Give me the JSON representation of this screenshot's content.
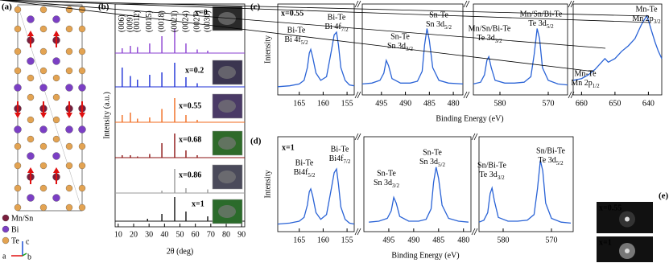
{
  "structure": {
    "panel_label": "(a)",
    "legend": [
      "Mn/Sn",
      "Bi",
      "Te"
    ],
    "axes": [
      "a",
      "b",
      "c"
    ]
  },
  "chart_data": [
    {
      "type": "stem",
      "panel_label": "(b)",
      "xlabel": "2θ (deg)",
      "ylabel": "Intensity (a.u.)",
      "xlim": [
        8,
        92
      ],
      "xticks": [
        10,
        20,
        30,
        40,
        50,
        60,
        70,
        80,
        90
      ],
      "peak_labels": [
        "(006)",
        "(009)",
        "(0012)",
        "(0015)",
        "(0018)",
        "(0021)",
        "(0024)",
        "(0027)",
        "(0030)"
      ],
      "series": [
        {
          "name": "x=0",
          "color": "#8a3fd1",
          "x": [
            12.6,
            17.9,
            22.5,
            30.4,
            38.3,
            46.6,
            53.9,
            61.2,
            68.0
          ],
          "values": [
            20,
            30,
            25,
            40,
            70,
            100,
            40,
            15,
            10
          ]
        },
        {
          "name": "x=0.2",
          "color": "#1c2fd6",
          "x": [
            12.6,
            17.9,
            22.5,
            30.4,
            38.3,
            46.6,
            53.9,
            61.2
          ],
          "values": [
            80,
            45,
            30,
            50,
            60,
            100,
            40,
            15
          ]
        },
        {
          "name": "x=0.55",
          "color": "#f06a1d",
          "x": [
            12.6,
            17.9,
            22.5,
            30.4,
            38.3,
            46.6,
            53.9,
            61.2
          ],
          "values": [
            30,
            40,
            15,
            20,
            55,
            100,
            30,
            10
          ]
        },
        {
          "name": "x=0.68",
          "color": "#8b1010",
          "x": [
            12.6,
            17.9,
            22.5,
            30.4,
            38.3,
            46.6,
            53.9,
            61.2
          ],
          "values": [
            10,
            10,
            5,
            15,
            60,
            100,
            30,
            10
          ]
        },
        {
          "name": "x=0.86",
          "color": "#9a9a9a",
          "x": [
            38.3,
            46.6,
            53.9,
            68.0
          ],
          "values": [
            10,
            100,
            20,
            15
          ]
        },
        {
          "name": "x=1",
          "color": "#111111",
          "x": [
            29.0,
            38.3,
            46.6,
            53.9,
            68.0
          ],
          "values": [
            10,
            30,
            100,
            40,
            20
          ]
        }
      ]
    },
    {
      "type": "line",
      "panel_label": "(c)",
      "title": "x=0.55",
      "xlabel": "Binding Energy (eV)",
      "ylabel": "Intensity",
      "color": "#2a63d6",
      "ylim": [
        0,
        100
      ],
      "segments": [
        {
          "xlim": [
            169.5,
            153.5
          ],
          "xticks": [
            165,
            160,
            155
          ],
          "x": [
            169.5,
            167,
            165,
            164,
            163.3,
            162.9,
            162.6,
            162.2,
            161.5,
            160.5,
            159.3,
            158.3,
            157.7,
            157.2,
            156.8,
            156.3,
            155.4,
            154.5,
            153.5
          ],
          "values": [
            9,
            10,
            12,
            16,
            30,
            46,
            50,
            42,
            24,
            16,
            20,
            48,
            66,
            69,
            55,
            30,
            16,
            11,
            10
          ]
        },
        {
          "xlim": [
            499,
            478
          ],
          "xticks": [
            495,
            490,
            485,
            480
          ],
          "x": [
            499,
            497,
            495.3,
            494.5,
            494,
            493.5,
            492.8,
            491,
            489,
            487.5,
            486.5,
            486,
            485.5,
            485,
            484.3,
            483,
            481,
            478
          ],
          "values": [
            12,
            13,
            16,
            24,
            38,
            32,
            18,
            13,
            13,
            15,
            26,
            55,
            73,
            60,
            30,
            16,
            13,
            12
          ]
        },
        {
          "xlim": [
            585.5,
            566
          ],
          "xticks": [
            580,
            570
          ],
          "x": [
            585.5,
            584,
            583.2,
            582.7,
            582.3,
            581.8,
            581,
            579,
            577,
            575,
            573.6,
            572.9,
            572.3,
            571.8,
            571.2,
            570,
            568,
            566
          ],
          "values": [
            12,
            14,
            22,
            38,
            42,
            30,
            16,
            13,
            13,
            14,
            20,
            45,
            73,
            62,
            30,
            16,
            12,
            11
          ]
        },
        {
          "xlim": [
            662.5,
            636
          ],
          "xticks": [
            660,
            650,
            640
          ],
          "x": [
            662.5,
            660,
            658,
            656,
            654,
            653,
            652,
            650,
            648,
            646,
            644,
            643,
            642,
            641,
            640.5,
            640,
            639,
            638,
            637,
            636
          ],
          "values": [
            16,
            18,
            22,
            28,
            36,
            40,
            36,
            40,
            48,
            54,
            62,
            70,
            78,
            84,
            87,
            82,
            70,
            58,
            48,
            40
          ]
        }
      ],
      "annotations": [
        {
          "text": "Bi-Te",
          "label": "Bi 4f",
          "sub": "5/2"
        },
        {
          "text": "Bi-Te",
          "label": "Bi 4f",
          "sub": "7/2"
        },
        {
          "text": "Sn-Te",
          "label": "Sn 3d",
          "sub": "3/2"
        },
        {
          "text": "Sn-Te",
          "label": "Sn 3d",
          "sub": "5/2"
        },
        {
          "text": "Mn/Sn/Bi-Te",
          "label": "Te 3d",
          "sub": "3/2"
        },
        {
          "text": "Mn/Sn/Bi-Te",
          "label": "Te 3d",
          "sub": "5/2"
        },
        {
          "text": "Mn-Te",
          "label": "Mn 2p",
          "sub": "3/2"
        },
        {
          "text": "Mn-Te",
          "label": "Mn 2p",
          "sub": "1/2"
        }
      ]
    },
    {
      "type": "line",
      "panel_label": "(d)",
      "title": "x=1",
      "xlabel": "Binding Energy (eV)",
      "ylabel": "Intensity",
      "color": "#2a63d6",
      "ylim": [
        0,
        100
      ],
      "segments": [
        {
          "xlim": [
            169.5,
            153.5
          ],
          "xticks": [
            165,
            160,
            155
          ],
          "x": [
            169.5,
            167,
            165,
            164,
            163.3,
            162.9,
            162.6,
            162.2,
            161.5,
            160.5,
            159.3,
            158.3,
            157.7,
            157.2,
            156.8,
            156.3,
            155.4,
            154.5,
            153.5
          ],
          "values": [
            8,
            9,
            11,
            15,
            28,
            42,
            45,
            38,
            20,
            13,
            18,
            45,
            62,
            66,
            50,
            26,
            13,
            9,
            8
          ]
        },
        {
          "xlim": [
            500,
            478.5
          ],
          "xticks": [
            495,
            490,
            485,
            480
          ],
          "x": [
            499,
            497,
            495.3,
            494.5,
            494,
            493.5,
            492.8,
            491,
            489,
            487.5,
            486.5,
            486,
            485.5,
            485,
            484.3,
            483,
            481,
            479
          ],
          "values": [
            10,
            11,
            14,
            22,
            36,
            30,
            16,
            11,
            11,
            13,
            24,
            52,
            68,
            56,
            28,
            14,
            11,
            10
          ]
        },
        {
          "xlim": [
            585,
            565.5
          ],
          "xticks": [
            580,
            570
          ],
          "x": [
            585,
            584,
            583.2,
            582.7,
            582.3,
            581.8,
            581,
            579,
            577,
            575,
            573.6,
            572.9,
            572.3,
            571.8,
            571.2,
            570,
            568,
            566
          ],
          "values": [
            10,
            12,
            20,
            40,
            46,
            32,
            15,
            11,
            11,
            12,
            18,
            45,
            75,
            64,
            30,
            14,
            10,
            9
          ]
        }
      ],
      "annotations": [
        {
          "text": "Bi-Te",
          "label": "Bi4f",
          "sub": "5/2"
        },
        {
          "text": "Bi-Te",
          "label": "Bi4f",
          "sub": "7/2"
        },
        {
          "text": "Sn-Te",
          "label": "Sn 3d",
          "sub": "3/2"
        },
        {
          "text": "Sn-Te",
          "label": "Sn 3d",
          "sub": "5/2"
        },
        {
          "text": "Sn/Bi-Te",
          "label": "Te 3d",
          "sub": "3/2"
        },
        {
          "text": "Sn/Bi-Te",
          "label": "Te 3d",
          "sub": "5/2"
        }
      ]
    }
  ],
  "diffraction": {
    "panel_label": "(e)",
    "labels": [
      "x=0.55",
      "x=1"
    ]
  }
}
